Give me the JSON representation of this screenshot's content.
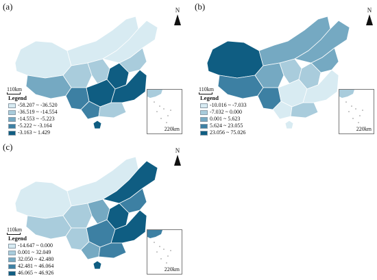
{
  "colors": [
    "#d8ebf2",
    "#a9ccdc",
    "#75a9c2",
    "#3d80a3",
    "#0f5d82"
  ],
  "panels": [
    {
      "label": "(a)",
      "north": "N",
      "scale": "110km",
      "inset_scale": "220km",
      "legend_title": "Legend",
      "legend": [
        "-58.207 ~ -36.520",
        "-36.519 ~ -14.554",
        "-14.553 ~ -5.223",
        "-5.222 ~ -3.164",
        "-3.163 ~ 1.429"
      ],
      "region_classes": [
        0,
        0,
        2,
        1,
        1,
        0,
        1,
        4,
        3,
        4,
        4,
        3,
        1,
        4
      ]
    },
    {
      "label": "(b)",
      "north": "N",
      "scale": "110km",
      "inset_scale": "220km",
      "legend_title": "Legend",
      "legend": [
        "-10.016 ~ -7.033",
        "-7.032 ~ 0.000",
        "0.001 ~ 5.623",
        "5.624 ~ 23.055",
        "23.056 ~ 75.026"
      ],
      "region_classes": [
        4,
        2,
        3,
        2,
        1,
        2,
        2,
        1,
        3,
        0,
        0,
        0,
        1,
        0
      ]
    },
    {
      "label": "(c)",
      "north": "N",
      "scale": "110km",
      "inset_scale": "220km",
      "legend_title": "Legend",
      "legend": [
        "-14.647 ~ 0.000",
        "0.001 ~ 32.049",
        "32.050 ~ 42.480",
        "42.481 ~ 46.064",
        "46.065 ~ 46.926"
      ],
      "region_classes": [
        0,
        0,
        1,
        1,
        2,
        4,
        3,
        4,
        1,
        3,
        4,
        2,
        3,
        4
      ]
    }
  ]
}
